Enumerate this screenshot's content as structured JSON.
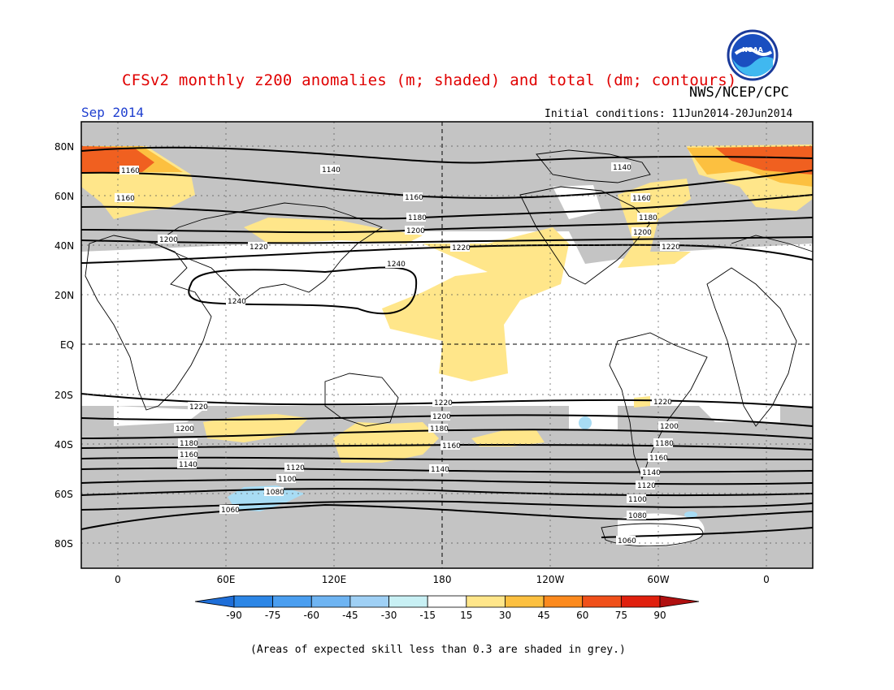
{
  "header": {
    "title": "CFSv2 monthly z200 anomalies (m; shaded) and total (dm; contours)",
    "agency": "NWS/NCEP/CPC",
    "month": "Sep 2014",
    "initial_conditions": "Initial conditions: 11Jun2014-20Jun2014"
  },
  "map": {
    "lat_labels": [
      "80N",
      "60N",
      "40N",
      "20N",
      "EQ",
      "20S",
      "40S",
      "60S",
      "80S"
    ],
    "lon_labels": [
      "0",
      "60E",
      "120E",
      "180",
      "120W",
      "60W",
      "0"
    ],
    "contour_labels": [
      "1060",
      "1080",
      "1100",
      "1120",
      "1140",
      "1160",
      "1180",
      "1200",
      "1220",
      "1240"
    ],
    "colors": {
      "grey_low_skill": "#c4c4c4",
      "ocean_land_bg": "#ffffff"
    }
  },
  "colorbar": {
    "labels": [
      "-90",
      "-75",
      "-60",
      "-45",
      "-30",
      "-15",
      "15",
      "30",
      "45",
      "60",
      "75",
      "90"
    ],
    "colors": [
      "#1e6ed8",
      "#2c86e6",
      "#4a9ef0",
      "#6eb4f2",
      "#9fd0f5",
      "#c8f0f4",
      "#ffffff",
      "#ffe68a",
      "#fcc040",
      "#fc8a1e",
      "#f0501a",
      "#e0200e",
      "#b01010"
    ]
  },
  "footer": {
    "note": "(Areas of expected skill less than 0.3 are shaded in grey.)"
  }
}
